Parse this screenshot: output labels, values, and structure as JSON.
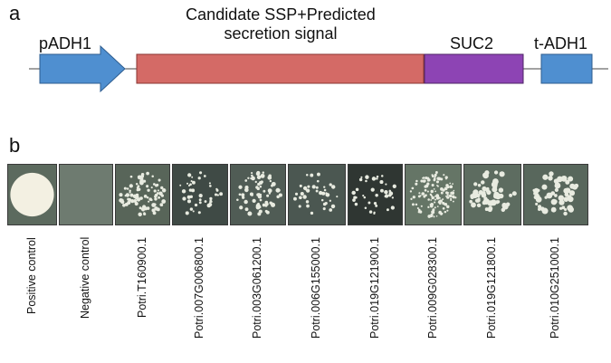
{
  "panel_a": {
    "letter": "a",
    "promoter_label": "pADH1",
    "candidate_label_line1": "Candidate SSP+Predicted",
    "candidate_label_line2": "secretion signal",
    "reporter_label": "SUC2",
    "terminator_label": "t-ADH1",
    "colors": {
      "promoter": "#4f8fd0",
      "candidate": "#d46a66",
      "reporter": "#8d44b4",
      "terminator": "#4f8fd0"
    }
  },
  "panel_b": {
    "letter": "b",
    "samples": [
      "Positive control",
      "Negative control",
      "Potri.T160900.1",
      "Potri.007G006800.1",
      "Potri.003G061200.1",
      "Potri.006G155000.1",
      "Potri.019G121900.1",
      "Potri.009G028300.1",
      "Potri.019G121800.1",
      "Potri.010G251000.1"
    ]
  }
}
